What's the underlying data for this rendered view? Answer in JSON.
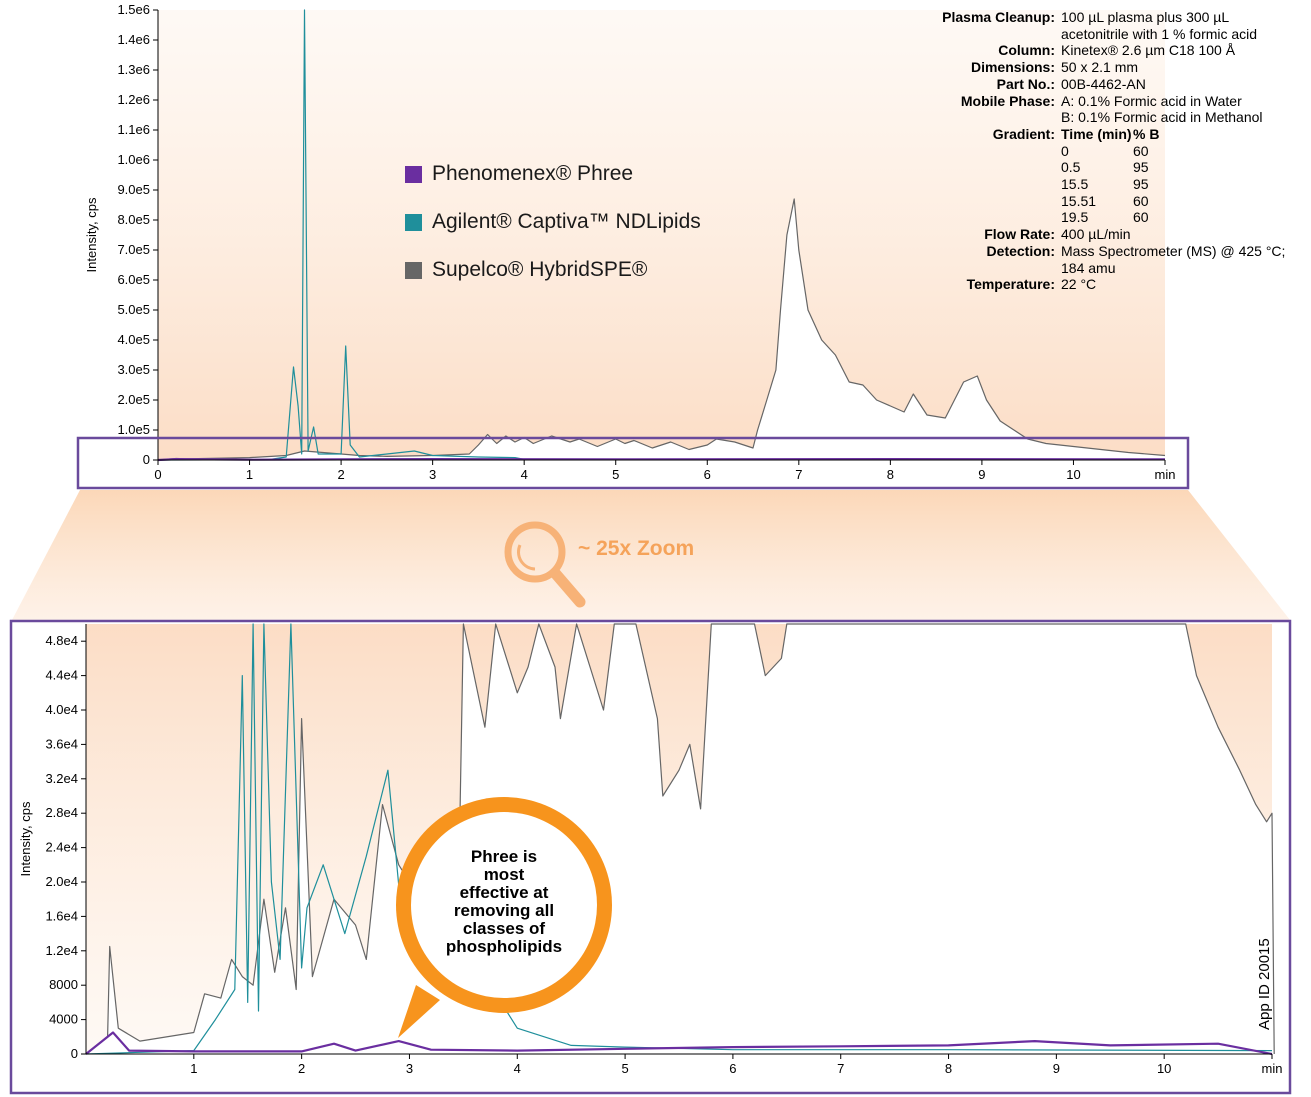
{
  "chart_data": [
    {
      "type": "line",
      "ylabel": "Intensity, cps",
      "xlim": [
        0,
        11
      ],
      "ylim": [
        0,
        1500000
      ],
      "x_ticks": [
        "0",
        "1",
        "2",
        "3",
        "4",
        "5",
        "6",
        "7",
        "8",
        "9",
        "10",
        "min"
      ],
      "y_ticks": [
        "0",
        "1.0e5",
        "2.0e5",
        "3.0e5",
        "4.0e5",
        "5.0e5",
        "6.0e5",
        "7.0e5",
        "8.0e5",
        "9.0e5",
        "1.0e6",
        "1.1e6",
        "1.2e6",
        "1.3e6",
        "1.4e6",
        "1.5e6"
      ],
      "series": [
        {
          "name": "Supelco® HybridSPE®",
          "color": "#666666",
          "points": [
            [
              0,
              0
            ],
            [
              0.2,
              5000
            ],
            [
              0.3,
              4000
            ],
            [
              1.0,
              8000
            ],
            [
              1.4,
              15000
            ],
            [
              1.6,
              30000
            ],
            [
              2.0,
              20000
            ],
            [
              2.2,
              15000
            ],
            [
              2.5,
              12000
            ],
            [
              3.0,
              15000
            ],
            [
              3.4,
              20000
            ],
            [
              3.5,
              50000
            ],
            [
              3.6,
              85000
            ],
            [
              3.7,
              55000
            ],
            [
              3.8,
              80000
            ],
            [
              3.9,
              60000
            ],
            [
              4.0,
              75000
            ],
            [
              4.1,
              55000
            ],
            [
              4.3,
              80000
            ],
            [
              4.5,
              60000
            ],
            [
              4.6,
              70000
            ],
            [
              4.8,
              45000
            ],
            [
              5.0,
              70000
            ],
            [
              5.1,
              55000
            ],
            [
              5.2,
              65000
            ],
            [
              5.4,
              40000
            ],
            [
              5.6,
              60000
            ],
            [
              5.8,
              35000
            ],
            [
              6.0,
              50000
            ],
            [
              6.1,
              70000
            ],
            [
              6.3,
              60000
            ],
            [
              6.5,
              40000
            ],
            [
              6.55,
              100000
            ],
            [
              6.65,
              200000
            ],
            [
              6.75,
              300000
            ],
            [
              6.8,
              500000
            ],
            [
              6.87,
              750000
            ],
            [
              6.95,
              870000
            ],
            [
              7.0,
              700000
            ],
            [
              7.1,
              500000
            ],
            [
              7.25,
              400000
            ],
            [
              7.4,
              350000
            ],
            [
              7.55,
              260000
            ],
            [
              7.7,
              250000
            ],
            [
              7.85,
              200000
            ],
            [
              8.0,
              180000
            ],
            [
              8.15,
              160000
            ],
            [
              8.25,
              220000
            ],
            [
              8.4,
              150000
            ],
            [
              8.6,
              140000
            ],
            [
              8.8,
              260000
            ],
            [
              8.95,
              280000
            ],
            [
              9.05,
              200000
            ],
            [
              9.2,
              130000
            ],
            [
              9.35,
              100000
            ],
            [
              9.5,
              70000
            ],
            [
              9.7,
              55000
            ],
            [
              10.0,
              45000
            ],
            [
              10.3,
              35000
            ],
            [
              10.6,
              25000
            ],
            [
              11.0,
              15000
            ]
          ]
        },
        {
          "name": "Agilent® Captiva™ NDLipids",
          "color": "#1f8f9b",
          "points": [
            [
              0,
              0
            ],
            [
              1.2,
              1000
            ],
            [
              1.4,
              10000
            ],
            [
              1.48,
              310000
            ],
            [
              1.53,
              180000
            ],
            [
              1.57,
              20000
            ],
            [
              1.6,
              1500000
            ],
            [
              1.64,
              30000
            ],
            [
              1.7,
              110000
            ],
            [
              1.75,
              20000
            ],
            [
              2.0,
              20000
            ],
            [
              2.05,
              380000
            ],
            [
              2.1,
              50000
            ],
            [
              2.2,
              10000
            ],
            [
              2.5,
              20000
            ],
            [
              2.8,
              30000
            ],
            [
              3.0,
              15000
            ],
            [
              3.5,
              10000
            ],
            [
              3.9,
              8000
            ],
            [
              4.0,
              2000
            ],
            [
              11.0,
              1000
            ]
          ]
        },
        {
          "name": "Phenomenex® Phree",
          "color": "#6a2ea0",
          "points": [
            [
              0,
              0
            ],
            [
              0.2,
              3000
            ],
            [
              1.0,
              1000
            ],
            [
              2.0,
              2000
            ],
            [
              3.0,
              3000
            ],
            [
              5.0,
              2000
            ],
            [
              8.0,
              3000
            ],
            [
              11.0,
              2000
            ]
          ]
        }
      ]
    },
    {
      "type": "line",
      "ylabel": "Intensity, cps",
      "xlim": [
        0,
        11
      ],
      "ylim": [
        0,
        50000
      ],
      "x_ticks": [
        "1",
        "2",
        "3",
        "4",
        "5",
        "6",
        "7",
        "8",
        "9",
        "10",
        "min"
      ],
      "y_ticks": [
        "0",
        "4000",
        "8000",
        "1.2e4",
        "1.6e4",
        "2.0e4",
        "2.4e4",
        "2.8e4",
        "3.2e4",
        "3.6e4",
        "4.0e4",
        "4.4e4",
        "4.8e4"
      ],
      "series": [
        {
          "name": "Supelco® HybridSPE®",
          "color": "#666666",
          "points": [
            [
              0,
              0
            ],
            [
              0.2,
              2000
            ],
            [
              0.22,
              12500
            ],
            [
              0.3,
              3000
            ],
            [
              0.5,
              1500
            ],
            [
              1.0,
              2500
            ],
            [
              1.1,
              7000
            ],
            [
              1.25,
              6500
            ],
            [
              1.35,
              11000
            ],
            [
              1.45,
              9000
            ],
            [
              1.55,
              8000
            ],
            [
              1.65,
              18000
            ],
            [
              1.75,
              9500
            ],
            [
              1.85,
              17000
            ],
            [
              1.95,
              7500
            ],
            [
              2.0,
              39000
            ],
            [
              2.1,
              9000
            ],
            [
              2.3,
              18000
            ],
            [
              2.5,
              15000
            ],
            [
              2.6,
              11000
            ],
            [
              2.75,
              29000
            ],
            [
              2.9,
              22000
            ],
            [
              3.1,
              18000
            ],
            [
              3.3,
              12000
            ],
            [
              3.45,
              15000
            ],
            [
              3.5,
              50000
            ],
            [
              3.7,
              38000
            ],
            [
              3.8,
              50000
            ],
            [
              4.0,
              42000
            ],
            [
              4.1,
              45000
            ],
            [
              4.2,
              50000
            ],
            [
              4.35,
              45000
            ],
            [
              4.4,
              39000
            ],
            [
              4.55,
              50000
            ],
            [
              4.8,
              40000
            ],
            [
              4.9,
              50000
            ],
            [
              5.1,
              50000
            ],
            [
              5.3,
              39000
            ],
            [
              5.35,
              30000
            ],
            [
              5.5,
              33000
            ],
            [
              5.6,
              36000
            ],
            [
              5.7,
              28500
            ],
            [
              5.8,
              50000
            ],
            [
              6.2,
              50000
            ],
            [
              6.3,
              44000
            ],
            [
              6.45,
              46000
            ],
            [
              6.5,
              50000
            ],
            [
              10.2,
              50000
            ],
            [
              10.3,
              44000
            ],
            [
              10.5,
              38000
            ],
            [
              10.7,
              33000
            ],
            [
              10.85,
              29000
            ],
            [
              10.95,
              27000
            ],
            [
              11.0,
              28000
            ],
            [
              11.02,
              0
            ]
          ]
        },
        {
          "name": "Agilent® Captiva™ NDLipids",
          "color": "#1f8f9b",
          "points": [
            [
              0,
              0
            ],
            [
              0.5,
              200
            ],
            [
              1.0,
              400
            ],
            [
              1.2,
              4000
            ],
            [
              1.38,
              7500
            ],
            [
              1.45,
              44000
            ],
            [
              1.5,
              6000
            ],
            [
              1.55,
              50000
            ],
            [
              1.6,
              5000
            ],
            [
              1.65,
              50000
            ],
            [
              1.72,
              20000
            ],
            [
              1.8,
              11000
            ],
            [
              1.9,
              50000
            ],
            [
              2.0,
              10000
            ],
            [
              2.05,
              17000
            ],
            [
              2.2,
              22000
            ],
            [
              2.4,
              14000
            ],
            [
              2.6,
              23000
            ],
            [
              2.8,
              33000
            ],
            [
              2.95,
              13000
            ],
            [
              3.2,
              16000
            ],
            [
              3.5,
              14000
            ],
            [
              3.8,
              7000
            ],
            [
              4.0,
              3000
            ],
            [
              4.5,
              1000
            ],
            [
              5.0,
              800
            ],
            [
              6.0,
              500
            ],
            [
              8.0,
              500
            ],
            [
              11.0,
              400
            ]
          ]
        },
        {
          "name": "Phenomenex® Phree",
          "color": "#6a2ea0",
          "points": [
            [
              0,
              0
            ],
            [
              0.25,
              2500
            ],
            [
              0.4,
              400
            ],
            [
              1.0,
              300
            ],
            [
              2.0,
              300
            ],
            [
              2.3,
              1200
            ],
            [
              2.5,
              400
            ],
            [
              2.9,
              1500
            ],
            [
              3.2,
              500
            ],
            [
              4.0,
              400
            ],
            [
              5.0,
              600
            ],
            [
              6.0,
              800
            ],
            [
              7.0,
              900
            ],
            [
              8.0,
              1000
            ],
            [
              8.8,
              1500
            ],
            [
              9.5,
              1000
            ],
            [
              10.5,
              1200
            ],
            [
              11.0,
              0
            ]
          ]
        }
      ]
    }
  ],
  "legend": [
    {
      "label": "Phenomenex® Phree",
      "color": "#6a2ea0"
    },
    {
      "label": "Agilent® Captiva™ NDLipids",
      "color": "#1f8f9b"
    },
    {
      "label": "Supelco® HybridSPE®",
      "color": "#666666"
    }
  ],
  "params": {
    "plasma_label": "Plasma Cleanup:",
    "plasma_line1": "100 µL plasma plus 300 µL",
    "plasma_line2": "acetonitrile with 1 % formic acid",
    "column_label": "Column:",
    "column_value": "Kinetex® 2.6 µm C18 100 Å",
    "dimensions_label": "Dimensions:",
    "dimensions_value": "50 x 2.1 mm",
    "partno_label": "Part No.:",
    "partno_value": "00B-4462-AN",
    "mobile_label": "Mobile Phase:",
    "mobile_a": "A: 0.1% Formic acid in Water",
    "mobile_b": "B: 0.1% Formic acid in Methanol",
    "gradient_label": "Gradient:",
    "gradient_head_time": "Time (min)",
    "gradient_head_b": "% B",
    "gradient_rows": [
      {
        "t": "0",
        "b": "60"
      },
      {
        "t": "0.5",
        "b": "95"
      },
      {
        "t": "15.5",
        "b": "95"
      },
      {
        "t": "15.51",
        "b": "60"
      },
      {
        "t": "19.5",
        "b": "60"
      }
    ],
    "flow_label": "Flow Rate:",
    "flow_value": "400 µL/min",
    "detection_label": "Detection:",
    "detection_line1": "Mass Spectrometer (MS) @ 425 °C;",
    "detection_line2": "184 amu",
    "temperature_label": "Temperature:",
    "temperature_value": "22 °C"
  },
  "zoom_label": "~ 25x Zoom",
  "bubble": {
    "line1": "Phree is",
    "line2": "most",
    "line3": "effective at",
    "line4": "removing all",
    "line5": "classes of",
    "line6": "phospholipids"
  },
  "app_id": "App ID 20015",
  "colors": {
    "background_tint": "#fde9d9",
    "accent_orange": "#f7941d",
    "frame_purple": "#6a4a9c"
  }
}
